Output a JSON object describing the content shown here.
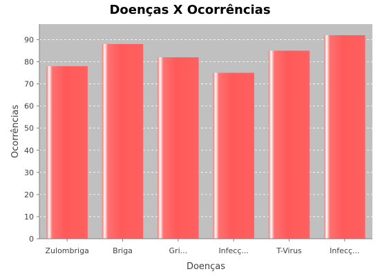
{
  "chart_data": {
    "type": "bar",
    "title": "Doenças X Ocorrências",
    "xlabel": "Doenças",
    "ylabel": "Ocorrências",
    "categories": [
      "Zulombriga",
      "Briga",
      "Gri...",
      "Infecç...",
      "T-Virus",
      "Infecç..."
    ],
    "values": [
      78,
      88,
      82,
      75,
      85,
      92
    ],
    "ylim": [
      0,
      97
    ],
    "yticks": [
      0,
      10,
      20,
      30,
      40,
      50,
      60,
      70,
      80,
      90
    ],
    "grid": true,
    "legend": "none",
    "colors": {
      "bar": "#ff5555",
      "bar_highlight": "#ffe0e0",
      "plot_background": "#c0c0c0",
      "grid": "#ffffff",
      "axis": "#808080"
    }
  }
}
